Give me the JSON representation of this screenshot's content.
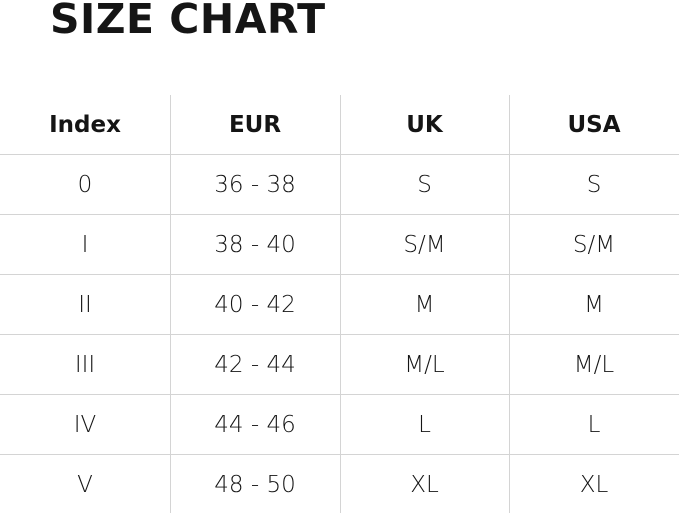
{
  "title": "SIZE CHART",
  "table": {
    "headers": [
      "Index",
      "EUR",
      "UK",
      "USA"
    ],
    "rows": [
      [
        "0",
        "36 - 38",
        "S",
        "S"
      ],
      [
        "I",
        "38 - 40",
        "S/M",
        "S/M"
      ],
      [
        "II",
        "40 - 42",
        "M",
        "M"
      ],
      [
        "III",
        "42 - 44",
        "M/L",
        "M/L"
      ],
      [
        "IV",
        "44 - 46",
        "L",
        "L"
      ],
      [
        "V",
        "48 - 50",
        "XL",
        "XL"
      ]
    ]
  },
  "colors": {
    "text": "#151515",
    "grid": "#d4d4d4",
    "background": "#ffffff"
  }
}
